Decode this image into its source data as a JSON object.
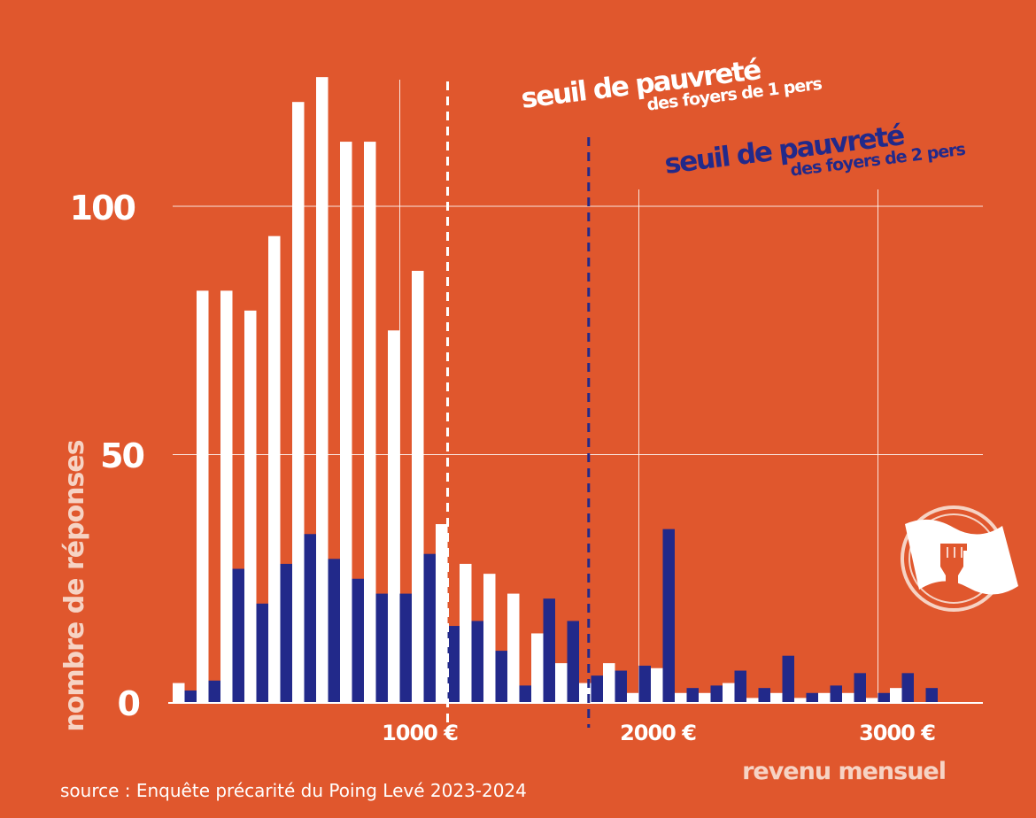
{
  "chart_data": {
    "type": "bar",
    "xlabel": "revenu mensuel",
    "ylabel": "nombre de réponses",
    "source": "source : Enquête précarité du Poing Levé 2023-2024",
    "y_ticks": [
      "100",
      "50",
      "0"
    ],
    "y_tick_values": [
      100,
      50,
      0
    ],
    "x_ticks": [
      "1000 €",
      "2000 €",
      "3000 €"
    ],
    "x_tick_values": [
      1000,
      2000,
      3000
    ],
    "ylim": [
      0,
      125
    ],
    "xlim": [
      0,
      3250
    ],
    "bin_width": 100,
    "categories": [
      100,
      200,
      300,
      400,
      500,
      600,
      700,
      800,
      900,
      1000,
      1100,
      1200,
      1300,
      1400,
      1500,
      1600,
      1700,
      1800,
      1900,
      2000,
      2100,
      2200,
      2300,
      2400,
      2500,
      2600,
      2700,
      2800,
      2900,
      3000,
      3100,
      3200
    ],
    "series": [
      {
        "color": "#ffffff",
        "values": [
          4,
          83,
          83,
          79,
          94,
          121,
          126,
          113,
          113,
          75,
          87,
          36,
          28,
          26,
          22,
          14,
          8,
          4,
          8,
          2,
          7,
          2,
          2,
          4,
          1,
          2,
          1,
          2,
          2,
          1,
          3,
          0
        ]
      },
      {
        "color": "#22298A",
        "values": [
          2.5,
          4.5,
          27,
          20,
          28,
          34,
          29,
          25,
          22,
          22,
          30,
          15.5,
          16.5,
          10.5,
          3.5,
          21,
          16.5,
          5.5,
          6.5,
          7.5,
          35,
          3,
          3.5,
          6.5,
          3,
          9.5,
          2,
          3.5,
          6,
          2,
          6,
          3
        ]
      }
    ],
    "grid": true,
    "annotations": [
      {
        "x": 1200,
        "color": "#ffffff",
        "line1": "seuil de pauvreté",
        "line2": "des foyers de 1 pers"
      },
      {
        "x": 1790,
        "color": "#22298A",
        "line1": "seuil de pauvreté",
        "line2": "des foyers de 2 pers"
      }
    ]
  },
  "colors": {
    "background": "#E0572D",
    "white": "#ffffff",
    "navy": "#22298A",
    "label": "#F6D3C4"
  },
  "icons": {
    "logo": "raised-fist-flag-icon"
  }
}
